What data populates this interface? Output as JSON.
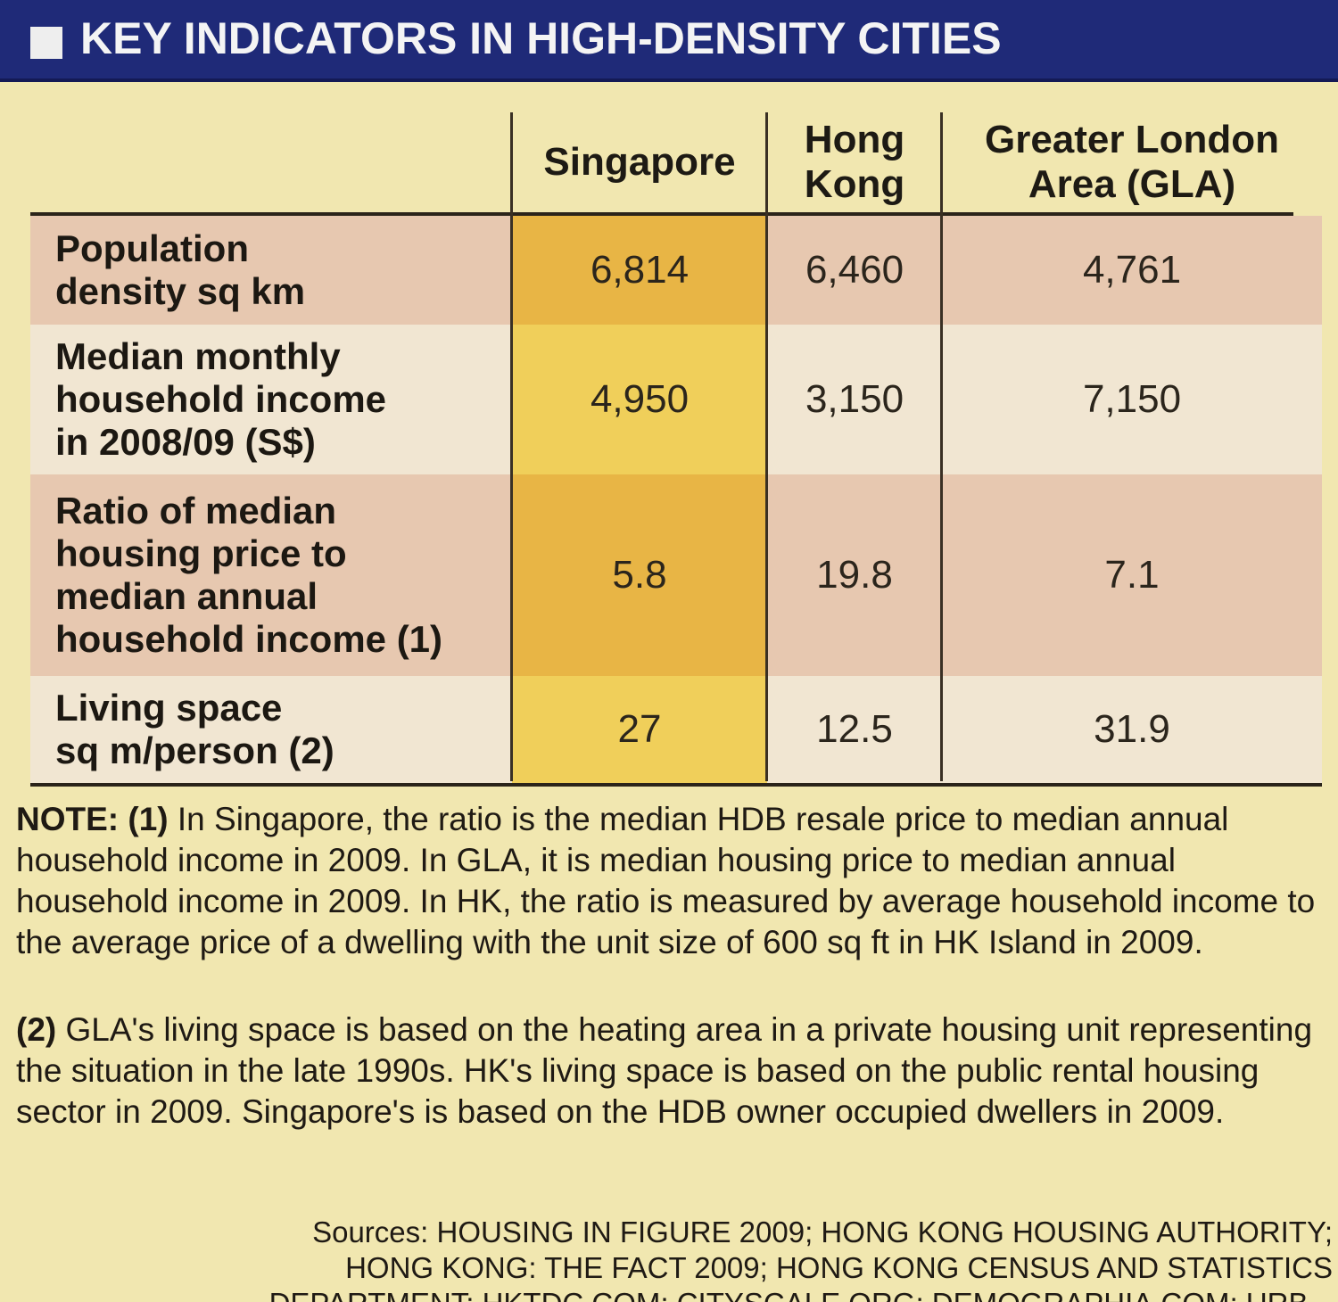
{
  "header": {
    "title": "KEY INDICATORS IN HIGH-DENSITY CITIES"
  },
  "chart_data": {
    "type": "table",
    "title": "KEY INDICATORS IN HIGH-DENSITY CITIES",
    "columns": [
      "Singapore",
      "Hong Kong",
      "Greater London Area (GLA)"
    ],
    "column_lines": [
      [
        "Singapore"
      ],
      [
        "Hong",
        "Kong"
      ],
      [
        "Greater London",
        "Area (GLA)"
      ]
    ],
    "rows": [
      {
        "label_lines": [
          "Population",
          "density sq km"
        ],
        "values": [
          "6,814",
          "6,460",
          "4,761"
        ]
      },
      {
        "label_lines": [
          "Median monthly",
          "household income",
          "in 2008/09 (S$)"
        ],
        "values": [
          "4,950",
          "3,150",
          "7,150"
        ]
      },
      {
        "label_lines": [
          "Ratio of median",
          "housing price to",
          "median annual",
          "household income (1)"
        ],
        "values": [
          "5.8",
          "19.8",
          "7.1"
        ]
      },
      {
        "label_lines": [
          "Living space",
          "sq m/person (2)"
        ],
        "values": [
          "27",
          "12.5",
          "31.9"
        ]
      }
    ]
  },
  "notes": [
    {
      "marker": "NOTE: (1)",
      "text": "In Singapore, the ratio is the median HDB resale price to median annual household income in 2009. In GLA, it is median housing price to median annual household income in 2009. In HK, the ratio is measured by average household income to the average price of a dwelling with the unit size of 600 sq ft in HK Island in 2009."
    },
    {
      "marker": "(2)",
      "text": "GLA's living space is based on the heating area in a private housing unit representing the situation in the late 1990s. HK's living space is based on the public rental housing sector in 2009. Singapore's is based on the HDB owner occupied dwellers in 2009."
    }
  ],
  "sources": {
    "line1": "Sources: HOUSING IN FIGURE 2009; HONG KONG HOUSING AUTHORITY;",
    "line2": "HONG KONG: THE FACT 2009; HONG KONG CENSUS AND STATISTICS",
    "line3": "DEPARTMENT; HKTDC.COM; CITYSCALE.ORG; DEMOGRAPHIA.COM; URB..."
  },
  "colors": {
    "header_bg": "#1f2a78",
    "paper": "#f1e7b0",
    "row_pink": "#e7c8b0",
    "row_light": "#f1e6d2",
    "singapore_highlight": "#f0cf5a"
  }
}
